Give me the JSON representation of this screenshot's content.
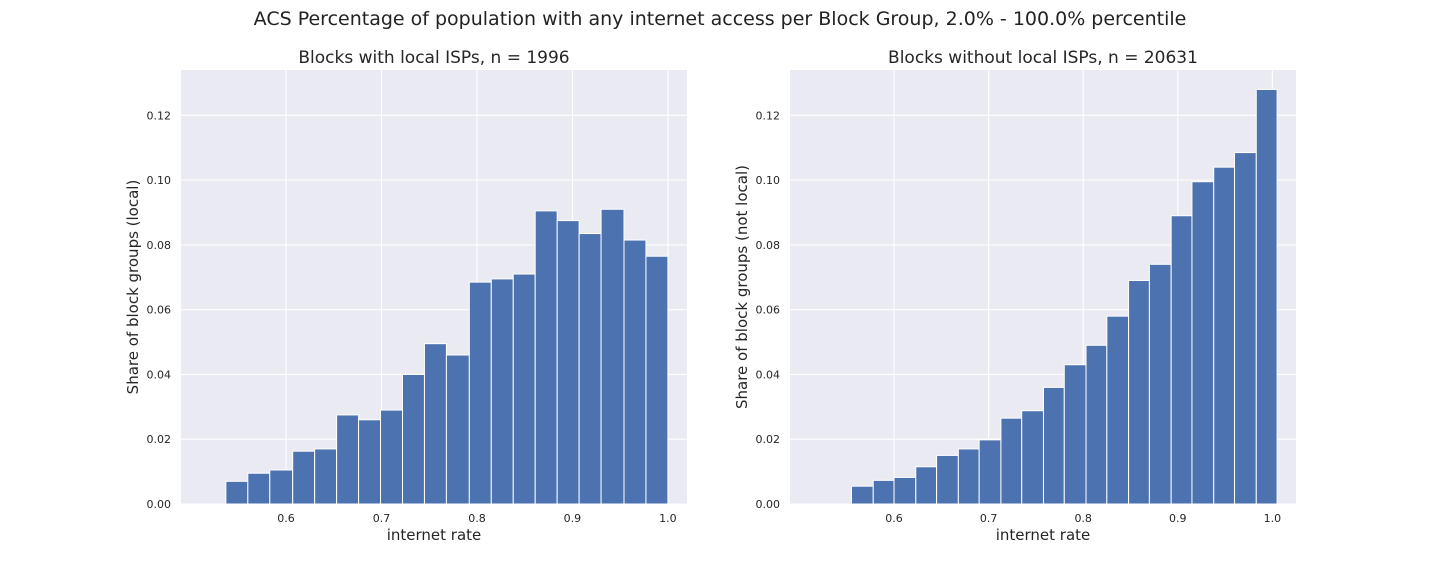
{
  "figure": {
    "title": "ACS Percentage of population with any internet access per Block Group, 2.0% - 100.0% percentile"
  },
  "colors": {
    "bar": "#4c72b0",
    "plot_bg": "#eaeaf2",
    "grid": "#ffffff",
    "text": "#262626"
  },
  "chart_data": [
    {
      "type": "bar",
      "title": "Blocks with local ISPs, n = 1996",
      "xlabel": "internet rate",
      "ylabel": "Share of block groups (local)",
      "xlim": [
        0.49,
        1.02
      ],
      "ylim": [
        0,
        0.134
      ],
      "xticks": [
        "0.6",
        "0.7",
        "0.8",
        "0.9",
        "1.0"
      ],
      "yticks": [
        "0.00",
        "0.02",
        "0.04",
        "0.06",
        "0.08",
        "0.10",
        "0.12"
      ],
      "bin_edges": [
        0.537,
        0.56,
        0.583,
        0.607,
        0.63,
        0.653,
        0.676,
        0.699,
        0.722,
        0.745,
        0.768,
        0.792,
        0.815,
        0.838,
        0.861,
        0.884,
        0.907,
        0.93,
        0.954,
        0.977,
        1.0
      ],
      "values": [
        0.007,
        0.0095,
        0.0105,
        0.0163,
        0.017,
        0.0275,
        0.026,
        0.029,
        0.04,
        0.0495,
        0.046,
        0.0685,
        0.0695,
        0.071,
        0.0905,
        0.0875,
        0.0835,
        0.091,
        0.0815,
        0.0765
      ],
      "grid": true
    },
    {
      "type": "bar",
      "title": "Blocks without local ISPs, n = 20631",
      "xlabel": "internet rate",
      "ylabel": "Share of block groups (not local)",
      "xlim": [
        0.49,
        1.025
      ],
      "ylim": [
        0,
        0.134
      ],
      "xticks": [
        "0.6",
        "0.7",
        "0.8",
        "0.9",
        "1.0"
      ],
      "yticks": [
        "0.00",
        "0.02",
        "0.04",
        "0.06",
        "0.08",
        "0.10",
        "0.12"
      ],
      "bin_edges": [
        0.555,
        0.578,
        0.6,
        0.623,
        0.645,
        0.668,
        0.69,
        0.713,
        0.735,
        0.758,
        0.78,
        0.803,
        0.825,
        0.848,
        0.87,
        0.893,
        0.915,
        0.938,
        0.96,
        0.983,
        1.005
      ],
      "values": [
        0.0055,
        0.0073,
        0.0082,
        0.0115,
        0.015,
        0.017,
        0.0198,
        0.0265,
        0.0288,
        0.036,
        0.043,
        0.049,
        0.058,
        0.069,
        0.074,
        0.089,
        0.0995,
        0.104,
        0.1085,
        0.128
      ],
      "grid": true
    }
  ]
}
